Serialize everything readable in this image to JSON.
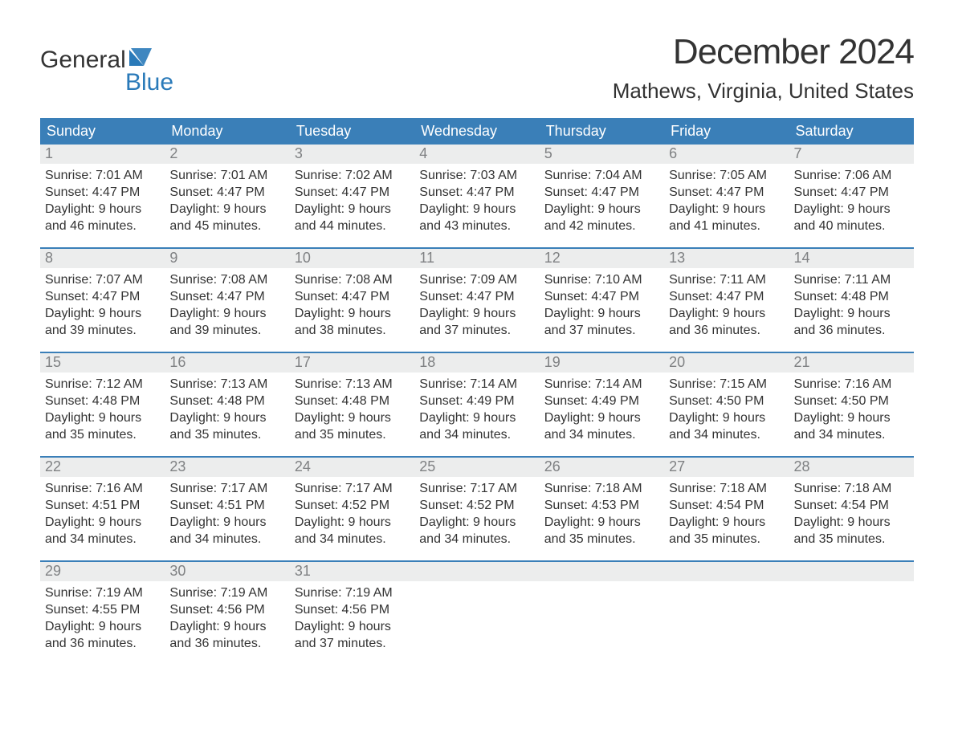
{
  "logo": {
    "text1": "General",
    "text2": "Blue"
  },
  "title": "December 2024",
  "location": "Mathews, Virginia, United States",
  "colors": {
    "header_bg": "#3a7fb8",
    "header_fg": "#ffffff",
    "divider": "#3a7fb8",
    "daynum_bg": "#eceded",
    "daynum_fg": "#7f8183",
    "text": "#333333",
    "logo_accent": "#2a7ab9"
  },
  "weekdays": [
    "Sunday",
    "Monday",
    "Tuesday",
    "Wednesday",
    "Thursday",
    "Friday",
    "Saturday"
  ],
  "weeks": [
    [
      {
        "n": "1",
        "sr": "7:01 AM",
        "ss": "4:47 PM",
        "dh": "9",
        "dm": "46"
      },
      {
        "n": "2",
        "sr": "7:01 AM",
        "ss": "4:47 PM",
        "dh": "9",
        "dm": "45"
      },
      {
        "n": "3",
        "sr": "7:02 AM",
        "ss": "4:47 PM",
        "dh": "9",
        "dm": "44"
      },
      {
        "n": "4",
        "sr": "7:03 AM",
        "ss": "4:47 PM",
        "dh": "9",
        "dm": "43"
      },
      {
        "n": "5",
        "sr": "7:04 AM",
        "ss": "4:47 PM",
        "dh": "9",
        "dm": "42"
      },
      {
        "n": "6",
        "sr": "7:05 AM",
        "ss": "4:47 PM",
        "dh": "9",
        "dm": "41"
      },
      {
        "n": "7",
        "sr": "7:06 AM",
        "ss": "4:47 PM",
        "dh": "9",
        "dm": "40"
      }
    ],
    [
      {
        "n": "8",
        "sr": "7:07 AM",
        "ss": "4:47 PM",
        "dh": "9",
        "dm": "39"
      },
      {
        "n": "9",
        "sr": "7:08 AM",
        "ss": "4:47 PM",
        "dh": "9",
        "dm": "39"
      },
      {
        "n": "10",
        "sr": "7:08 AM",
        "ss": "4:47 PM",
        "dh": "9",
        "dm": "38"
      },
      {
        "n": "11",
        "sr": "7:09 AM",
        "ss": "4:47 PM",
        "dh": "9",
        "dm": "37"
      },
      {
        "n": "12",
        "sr": "7:10 AM",
        "ss": "4:47 PM",
        "dh": "9",
        "dm": "37"
      },
      {
        "n": "13",
        "sr": "7:11 AM",
        "ss": "4:47 PM",
        "dh": "9",
        "dm": "36"
      },
      {
        "n": "14",
        "sr": "7:11 AM",
        "ss": "4:48 PM",
        "dh": "9",
        "dm": "36"
      }
    ],
    [
      {
        "n": "15",
        "sr": "7:12 AM",
        "ss": "4:48 PM",
        "dh": "9",
        "dm": "35"
      },
      {
        "n": "16",
        "sr": "7:13 AM",
        "ss": "4:48 PM",
        "dh": "9",
        "dm": "35"
      },
      {
        "n": "17",
        "sr": "7:13 AM",
        "ss": "4:48 PM",
        "dh": "9",
        "dm": "35"
      },
      {
        "n": "18",
        "sr": "7:14 AM",
        "ss": "4:49 PM",
        "dh": "9",
        "dm": "34"
      },
      {
        "n": "19",
        "sr": "7:14 AM",
        "ss": "4:49 PM",
        "dh": "9",
        "dm": "34"
      },
      {
        "n": "20",
        "sr": "7:15 AM",
        "ss": "4:50 PM",
        "dh": "9",
        "dm": "34"
      },
      {
        "n": "21",
        "sr": "7:16 AM",
        "ss": "4:50 PM",
        "dh": "9",
        "dm": "34"
      }
    ],
    [
      {
        "n": "22",
        "sr": "7:16 AM",
        "ss": "4:51 PM",
        "dh": "9",
        "dm": "34"
      },
      {
        "n": "23",
        "sr": "7:17 AM",
        "ss": "4:51 PM",
        "dh": "9",
        "dm": "34"
      },
      {
        "n": "24",
        "sr": "7:17 AM",
        "ss": "4:52 PM",
        "dh": "9",
        "dm": "34"
      },
      {
        "n": "25",
        "sr": "7:17 AM",
        "ss": "4:52 PM",
        "dh": "9",
        "dm": "34"
      },
      {
        "n": "26",
        "sr": "7:18 AM",
        "ss": "4:53 PM",
        "dh": "9",
        "dm": "35"
      },
      {
        "n": "27",
        "sr": "7:18 AM",
        "ss": "4:54 PM",
        "dh": "9",
        "dm": "35"
      },
      {
        "n": "28",
        "sr": "7:18 AM",
        "ss": "4:54 PM",
        "dh": "9",
        "dm": "35"
      }
    ],
    [
      {
        "n": "29",
        "sr": "7:19 AM",
        "ss": "4:55 PM",
        "dh": "9",
        "dm": "36"
      },
      {
        "n": "30",
        "sr": "7:19 AM",
        "ss": "4:56 PM",
        "dh": "9",
        "dm": "36"
      },
      {
        "n": "31",
        "sr": "7:19 AM",
        "ss": "4:56 PM",
        "dh": "9",
        "dm": "37"
      },
      null,
      null,
      null,
      null
    ]
  ]
}
